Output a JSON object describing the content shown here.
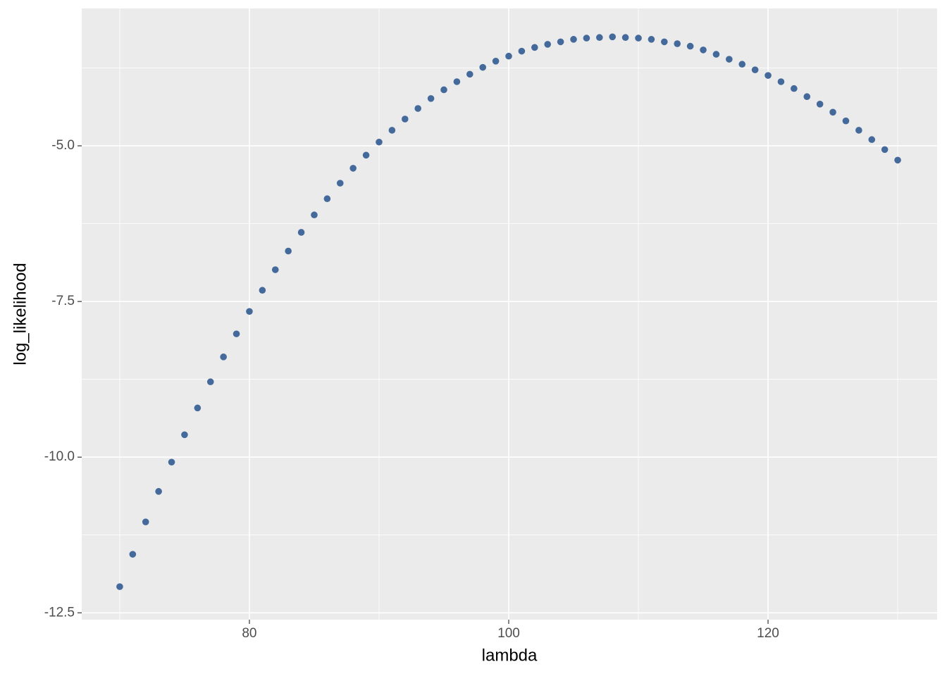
{
  "chart_data": {
    "type": "scatter",
    "x_label": "lambda",
    "y_label": "log_likelihood",
    "color": "#44699b",
    "x": [
      70,
      71,
      72,
      73,
      74,
      75,
      76,
      77,
      78,
      79,
      80,
      81,
      82,
      83,
      84,
      85,
      86,
      87,
      88,
      89,
      90,
      91,
      92,
      93,
      94,
      95,
      96,
      97,
      98,
      99,
      100,
      101,
      102,
      103,
      104,
      105,
      106,
      107,
      108,
      109,
      110,
      111,
      112,
      113,
      114,
      115,
      116,
      117,
      118,
      119,
      120,
      121,
      122,
      123,
      124,
      125,
      126,
      127,
      128,
      129,
      130
    ],
    "values": [
      -12.08,
      -11.56,
      -11.04,
      -10.55,
      -10.08,
      -9.64,
      -9.21,
      -8.79,
      -8.39,
      -8.02,
      -7.66,
      -7.32,
      -6.99,
      -6.69,
      -6.39,
      -6.11,
      -5.85,
      -5.6,
      -5.36,
      -5.15,
      -4.94,
      -4.75,
      -4.57,
      -4.4,
      -4.24,
      -4.1,
      -3.97,
      -3.85,
      -3.74,
      -3.64,
      -3.56,
      -3.48,
      -3.42,
      -3.37,
      -3.33,
      -3.29,
      -3.27,
      -3.26,
      -3.25,
      -3.26,
      -3.27,
      -3.29,
      -3.33,
      -3.36,
      -3.4,
      -3.46,
      -3.53,
      -3.61,
      -3.69,
      -3.78,
      -3.87,
      -3.97,
      -4.08,
      -4.21,
      -4.33,
      -4.46,
      -4.6,
      -4.75,
      -4.9,
      -5.06,
      -5.23
    ],
    "xlim": [
      67.07,
      133.04
    ],
    "ylim": [
      -12.61,
      -2.794
    ],
    "xticks": [
      80,
      100,
      120
    ],
    "yticks": [
      -12.5,
      {
        "value": -10,
        "label": "-10.0"
      },
      -7.5,
      {
        "value": -5,
        "label": "-5.0"
      }
    ],
    "xminor": [
      70,
      90,
      110,
      130
    ],
    "yminor": [
      -11.25,
      -8.75,
      -6.25,
      -3.75
    ],
    "grid": true
  }
}
